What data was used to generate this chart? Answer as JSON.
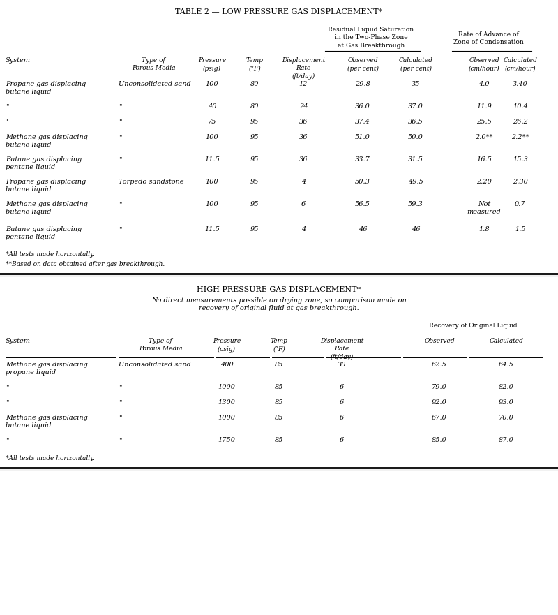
{
  "title1": "TABLE 2 — LOW PRESSURE GAS DISPLACEMENT*",
  "title2": "HIGH PRESSURE GAS DISPLACEMENT*",
  "title2_subtitle": "No direct measurements possible on drying zone, so comparison made on\nrecovery of original fluid at gas breakthrough.",
  "bg_color": "#ffffff",
  "font_family": "DejaVu Serif",
  "table1": {
    "rows": [
      [
        "Propane gas displacing\nbutane liquid",
        "Unconsolidated sand",
        "100",
        "80",
        "12",
        "29.8",
        "35",
        "4.0",
        "3.40"
      ],
      [
        "\"",
        "\"",
        "40",
        "80",
        "24",
        "36.0",
        "37.0",
        "11.9",
        "10.4"
      ],
      [
        "'",
        "\"",
        "75",
        "95",
        "36",
        "37.4",
        "36.5",
        "25.5",
        "26.2"
      ],
      [
        "Methane gas displacing\nbutane liquid",
        "\"",
        "100",
        "95",
        "36",
        "51.0",
        "50.0",
        "2.0**",
        "2.2**"
      ],
      [
        "Butane gas displacing\npentane liquid",
        "\"",
        "11.5",
        "95",
        "36",
        "33.7",
        "31.5",
        "16.5",
        "15.3"
      ],
      [
        "Propane gas displacing\nbutane liquid",
        "Torpedo sandstone",
        "100",
        "95",
        "4",
        "50.3",
        "49.5",
        "2.20",
        "2.30"
      ],
      [
        "Methane gas displacing\nbutane liquid",
        "\"",
        "100",
        "95",
        "6",
        "56.5",
        "59.3",
        "Not\nmeasured",
        "0.7"
      ],
      [
        "Butane gas displacing\npentane liquid",
        "\"",
        "11.5",
        "95",
        "4",
        "46",
        "46",
        "1.8",
        "1.5"
      ]
    ],
    "footnote1": "*All tests made horizontally.",
    "footnote2": "**Based on data obtained after gas breakthrough."
  },
  "table2": {
    "rows": [
      [
        "Methane gas displacing\npropane liquid",
        "Unconsolidated sand",
        "400",
        "85",
        "30",
        "62.5",
        "64.5"
      ],
      [
        "\"",
        "\"",
        "1000",
        "85",
        "6",
        "79.0",
        "82.0"
      ],
      [
        "\"",
        "\"",
        "1300",
        "85",
        "6",
        "92.0",
        "93.0"
      ],
      [
        "Methane gas displacing\nbutane liquid",
        "\"",
        "1000",
        "85",
        "6",
        "67.0",
        "70.0"
      ],
      [
        "\"",
        "\"",
        "1750",
        "85",
        "6",
        "85.0",
        "87.0"
      ]
    ],
    "footnote": "*All tests made horizontally."
  }
}
